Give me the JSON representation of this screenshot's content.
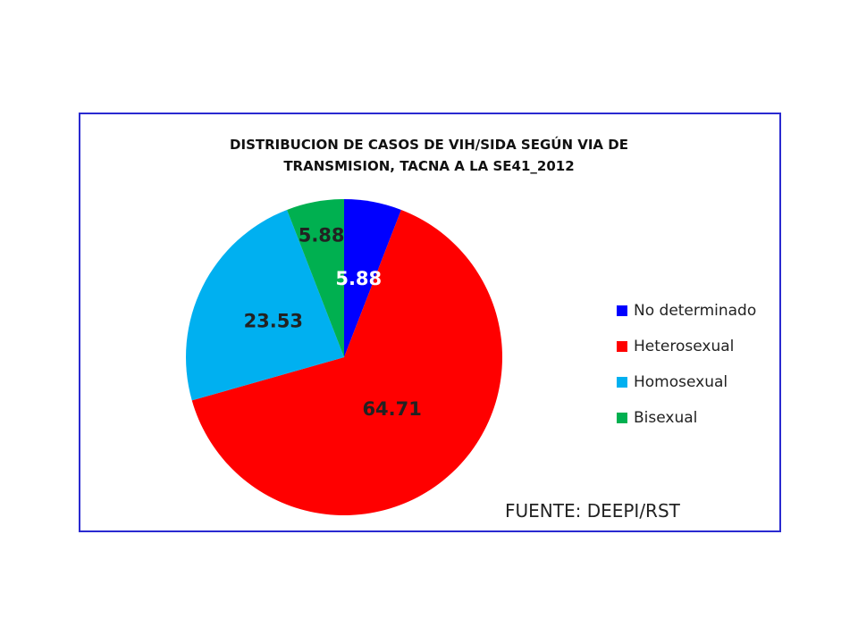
{
  "chart_data": {
    "type": "pie",
    "title_lines": [
      "DISTRIBUCION DE CASOS DE VIH/SIDA SEGÚN VIA DE",
      "TRANSMISION, TACNA A LA SE41_2012"
    ],
    "categories": [
      "No determinado",
      "Heterosexual",
      "Homosexual",
      "Bisexual"
    ],
    "values": [
      5.88,
      64.71,
      23.53,
      5.88
    ],
    "data_labels": [
      "5.88",
      "64.71",
      "23.53",
      "5.88"
    ],
    "colors": [
      "#0000ff",
      "#ff0000",
      "#00b0f0",
      "#00b050"
    ],
    "label_colors": [
      "#ffffff",
      "#222222",
      "#222222",
      "#222222"
    ],
    "start_angle_deg": 0,
    "direction": "clockwise",
    "legend_position": "right"
  },
  "source_note": "FUENTE: DEEPI/RST"
}
